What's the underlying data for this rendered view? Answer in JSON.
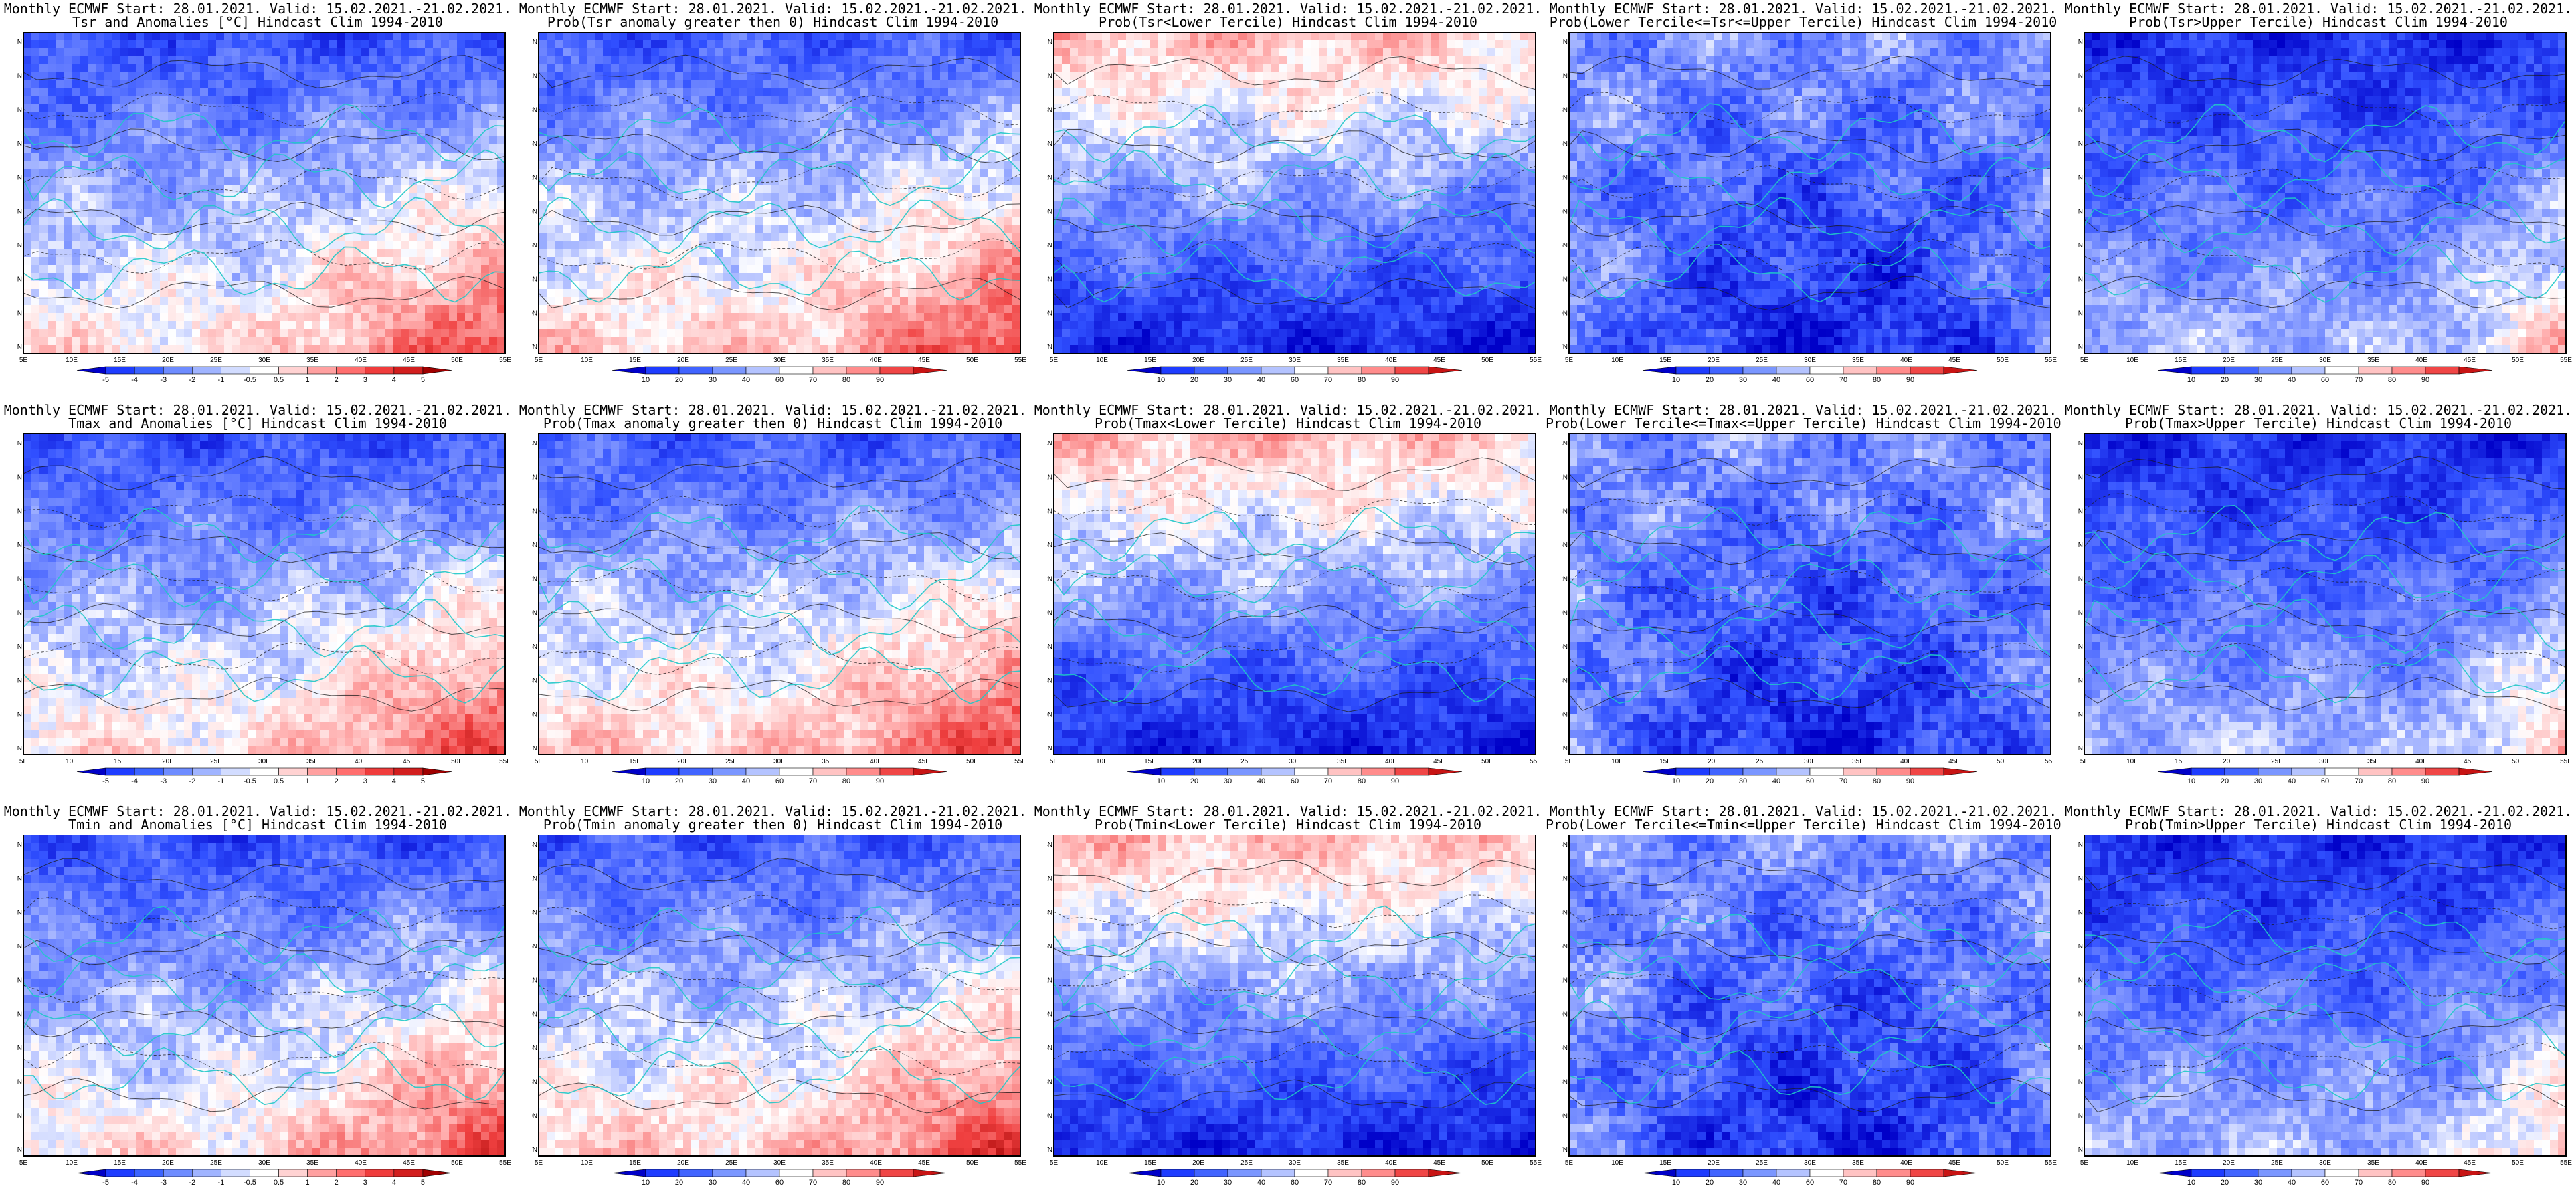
{
  "panels": [
    {
      "row": 0,
      "col": 0,
      "kind": "anomaly",
      "var": "Tsr",
      "line1": "Monthly ECMWF Start: 28.01.2021. Valid: 15.02.2021.-21.02.2021.",
      "line2": "Tsr and Anomalies [°C] Hindcast Clim 1994-2010"
    },
    {
      "row": 0,
      "col": 1,
      "kind": "prob-pos",
      "var": "Tsr",
      "line1": "Monthly ECMWF Start: 28.01.2021. Valid: 15.02.2021.-21.02.2021.",
      "line2": "Prob(Tsr anomaly greater then 0) Hindcast Clim 1994-2010"
    },
    {
      "row": 0,
      "col": 2,
      "kind": "prob-lower",
      "var": "Tsr",
      "line1": "Monthly ECMWF Start: 28.01.2021. Valid: 15.02.2021.-21.02.2021.",
      "line2": "Prob(Tsr<Lower Tercile) Hindcast Clim 1994-2010"
    },
    {
      "row": 0,
      "col": 3,
      "kind": "prob-middle",
      "var": "Tsr",
      "line1": "Monthly ECMWF Start: 28.01.2021. Valid: 15.02.2021.-21.02.2021.",
      "line2": "Prob(Lower Tercile<=Tsr<=Upper Tercile) Hindcast Clim 1994-2010"
    },
    {
      "row": 0,
      "col": 4,
      "kind": "prob-upper",
      "var": "Tsr",
      "line1": "Monthly ECMWF Start: 28.01.2021. Valid: 15.02.2021.-21.02.2021.",
      "line2": "Prob(Tsr>Upper Tercile) Hindcast Clim 1994-2010"
    },
    {
      "row": 1,
      "col": 0,
      "kind": "anomaly",
      "var": "Tmax",
      "line1": "Monthly ECMWF Start: 28.01.2021. Valid: 15.02.2021.-21.02.2021.",
      "line2": "Tmax and Anomalies [°C] Hindcast Clim 1994-2010"
    },
    {
      "row": 1,
      "col": 1,
      "kind": "prob-pos",
      "var": "Tmax",
      "line1": "Monthly ECMWF Start: 28.01.2021. Valid: 15.02.2021.-21.02.2021.",
      "line2": "Prob(Tmax anomaly greater then 0) Hindcast Clim 1994-2010"
    },
    {
      "row": 1,
      "col": 2,
      "kind": "prob-lower",
      "var": "Tmax",
      "line1": "Monthly ECMWF Start: 28.01.2021. Valid: 15.02.2021.-21.02.2021.",
      "line2": "Prob(Tmax<Lower Tercile) Hindcast Clim 1994-2010"
    },
    {
      "row": 1,
      "col": 3,
      "kind": "prob-middle",
      "var": "Tmax",
      "line1": "Monthly ECMWF Start: 28.01.2021. Valid: 15.02.2021.-21.02.2021.",
      "line2": "Prob(Lower Tercile<=Tmax<=Upper Tercile) Hindcast Clim 1994-2010"
    },
    {
      "row": 1,
      "col": 4,
      "kind": "prob-upper",
      "var": "Tmax",
      "line1": "Monthly ECMWF Start: 28.01.2021. Valid: 15.02.2021.-21.02.2021.",
      "line2": "Prob(Tmax>Upper Tercile) Hindcast Clim 1994-2010"
    },
    {
      "row": 2,
      "col": 0,
      "kind": "anomaly",
      "var": "Tmin",
      "line1": "Monthly ECMWF Start: 28.01.2021. Valid: 15.02.2021.-21.02.2021.",
      "line2": "Tmin and Anomalies [°C] Hindcast Clim 1994-2010"
    },
    {
      "row": 2,
      "col": 1,
      "kind": "prob-pos",
      "var": "Tmin",
      "line1": "Monthly ECMWF Start: 28.01.2021. Valid: 15.02.2021.-21.02.2021.",
      "line2": "Prob(Tmin anomaly greater then 0) Hindcast Clim 1994-2010"
    },
    {
      "row": 2,
      "col": 2,
      "kind": "prob-lower",
      "var": "Tmin",
      "line1": "Monthly ECMWF Start: 28.01.2021. Valid: 15.02.2021.-21.02.2021.",
      "line2": "Prob(Tmin<Lower Tercile) Hindcast Clim 1994-2010"
    },
    {
      "row": 2,
      "col": 3,
      "kind": "prob-middle",
      "var": "Tmin",
      "line1": "Monthly ECMWF Start: 28.01.2021. Valid: 15.02.2021.-21.02.2021.",
      "line2": "Prob(Lower Tercile<=Tmin<=Upper Tercile) Hindcast Clim 1994-2010"
    },
    {
      "row": 2,
      "col": 4,
      "kind": "prob-upper",
      "var": "Tmin",
      "line1": "Monthly ECMWF Start: 28.01.2021. Valid: 15.02.2021.-21.02.2021.",
      "line2": "Prob(Tmin>Upper Tercile) Hindcast Clim 1994-2010"
    }
  ],
  "axes": {
    "lat_labels": [
      "54N",
      "51N",
      "48N",
      "45N",
      "42N",
      "39N",
      "36N",
      "33N",
      "30N",
      "27N"
    ],
    "lon_labels": [
      "5E",
      "10E",
      "15E",
      "20E",
      "25E",
      "30E",
      "35E",
      "40E",
      "45E",
      "50E",
      "55E"
    ]
  },
  "colorbars": {
    "anomaly": {
      "labels": [
        "-5",
        "-4",
        "-3",
        "-2",
        "-1",
        "-0.5",
        "0.5",
        "1",
        "2",
        "3",
        "4",
        "5"
      ],
      "colors": [
        "#0000c8",
        "#1e3cff",
        "#3c64ff",
        "#6e8cff",
        "#a0b4ff",
        "#d2dcff",
        "#ffffff",
        "#ffd2d2",
        "#ffa0a0",
        "#ff6e6e",
        "#f03c3c",
        "#d21e1e",
        "#a00000"
      ]
    },
    "prob": {
      "labels": [
        "10",
        "20",
        "30",
        "40",
        "60",
        "70",
        "80",
        "90"
      ],
      "colors": [
        "#0000c8",
        "#1e3cff",
        "#4164ff",
        "#7a96ff",
        "#b4c3ff",
        "#ffffff",
        "#ffc3c3",
        "#ff8c8c",
        "#f04646",
        "#c81414"
      ]
    }
  }
}
